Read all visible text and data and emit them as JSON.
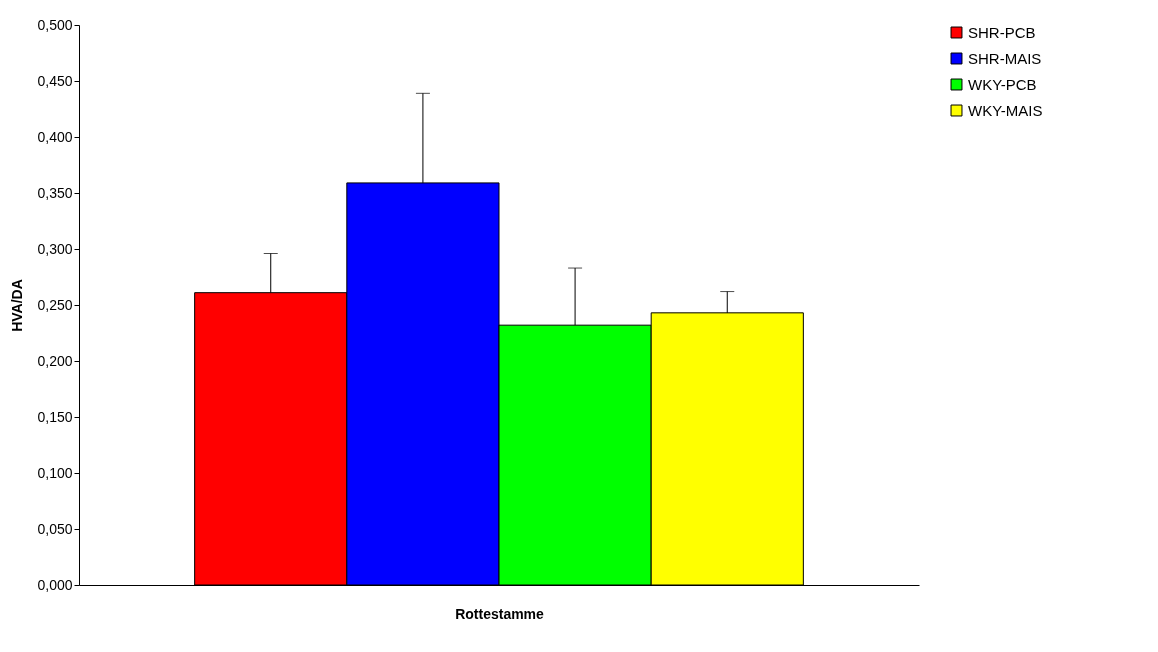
{
  "chart_data": {
    "type": "bar",
    "xlabel": "Rottestamme",
    "ylabel": "HVA/DA",
    "categories": [
      null
    ],
    "series": [
      {
        "name": "SHR-PCB",
        "color": "#ff0000",
        "values": [
          0.261
        ],
        "errors": [
          [
            0.261,
            0.296
          ]
        ]
      },
      {
        "name": "SHR-MAIS",
        "color": "#0000ff",
        "values": [
          0.359
        ],
        "errors": [
          [
            0.359,
            0.439
          ]
        ]
      },
      {
        "name": "WKY-PCB",
        "color": "#00ff00",
        "values": [
          0.232
        ],
        "errors": [
          [
            0.232,
            0.283
          ]
        ]
      },
      {
        "name": "WKY-MAIS",
        "color": "#ffff00",
        "values": [
          0.243
        ],
        "errors": [
          [
            0.243,
            0.262
          ]
        ]
      }
    ],
    "ylim": [
      0,
      0.5
    ],
    "yticks": [
      {
        "value": 0,
        "label": "0,000"
      },
      {
        "value": 0.05,
        "label": "0,050"
      },
      {
        "value": 0.1,
        "label": "0,100"
      },
      {
        "value": 0.15,
        "label": "0,150"
      },
      {
        "value": 0.2,
        "label": "0,200"
      },
      {
        "value": 0.25,
        "label": "0,250"
      },
      {
        "value": 0.3,
        "label": "0,300"
      },
      {
        "value": 0.35,
        "label": "0,350"
      },
      {
        "value": 0.4,
        "label": "0,400"
      },
      {
        "value": 0.45,
        "label": "0,450"
      },
      {
        "value": 0.5,
        "label": "0,500"
      }
    ],
    "tick_labels": "y",
    "legend": "right",
    "grid": false
  }
}
